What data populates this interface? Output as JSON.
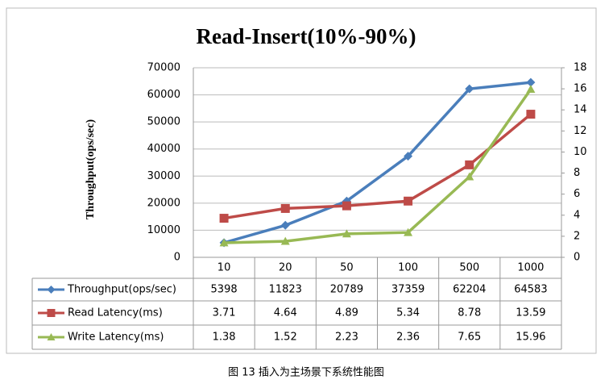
{
  "chart_data": {
    "type": "line",
    "title": "Read-Insert(10%-90%)",
    "y_label": "Throughput(ops/sec)",
    "categories": [
      "10",
      "20",
      "50",
      "100",
      "500",
      "1000"
    ],
    "series": [
      {
        "name": "Throughput(ops/sec)",
        "color": "#4a7ebb",
        "marker": "diamond",
        "values": [
          5398,
          11823,
          20789,
          37359,
          62204,
          64583
        ]
      },
      {
        "name": "Read Latency(ms)",
        "color": "#be4b48",
        "marker": "square",
        "axis": "y2",
        "values": [
          3.71,
          4.64,
          4.89,
          5.34,
          8.78,
          13.59
        ]
      },
      {
        "name": "Write Latency(ms)",
        "color": "#98b954",
        "marker": "triangle",
        "axis": "y2",
        "values": [
          1.38,
          1.52,
          2.23,
          2.36,
          7.65,
          15.96
        ]
      }
    ],
    "ylim": [
      0,
      70000
    ],
    "yticks": [
      0,
      10000,
      20000,
      30000,
      40000,
      50000,
      60000,
      70000
    ],
    "y2lim": [
      0,
      18
    ],
    "y2ticks": [
      0,
      2,
      4,
      6,
      8,
      10,
      12,
      14,
      16,
      18
    ],
    "grid": true,
    "data_table": true
  },
  "caption": "图 13 插入为主场景下系统性能图"
}
